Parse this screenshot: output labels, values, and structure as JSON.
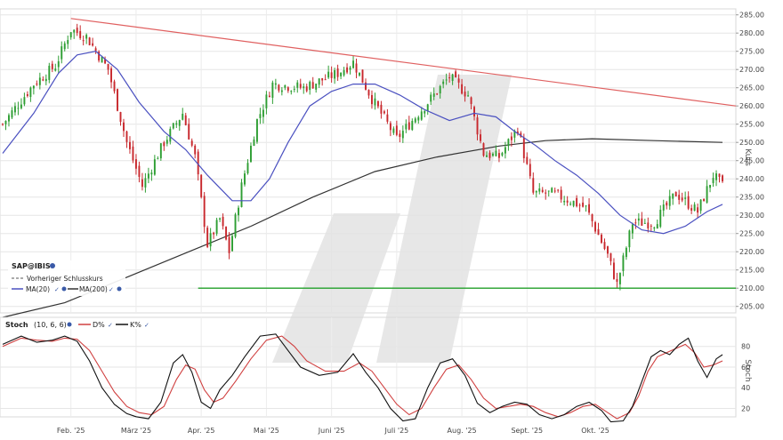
{
  "chart_data": [
    {
      "type": "candlestick",
      "legend": {
        "title": "SAP@IBIS",
        "items": [
          {
            "label": "Vorheriger Schlusskurs",
            "color": "#555555",
            "style": "dashed"
          },
          {
            "label": "MA(20)",
            "color": "#4a50c0"
          },
          {
            "label": "MA(200)",
            "color": "#333333"
          }
        ]
      },
      "ylabel": "Kurs",
      "ylim": [
        200,
        287
      ],
      "yticks": [
        "205.00",
        "210.00",
        "215.00",
        "220.00",
        "225.00",
        "230.00",
        "235.00",
        "240.00",
        "245.00",
        "250.00",
        "255.00",
        "260.00",
        "265.00",
        "270.00",
        "275.00",
        "280.00",
        "285.00"
      ],
      "xticks": [
        "Feb. '25",
        "März '25",
        "Apr. '25",
        "Mai '25",
        "Juni '25",
        "Juli '25",
        "Aug. '25",
        "Sept. '25",
        "Okt. '25"
      ],
      "colors": {
        "up": "#2e9e33",
        "down": "#c8282d",
        "ma20": "#4a50c0",
        "ma200": "#333333",
        "trendline": "#e06060",
        "support": "#22a02a"
      },
      "ohlc_keypoints": [
        {
          "x": 0,
          "close": 255
        },
        {
          "x": 10,
          "close": 266
        },
        {
          "x": 17,
          "close": 271
        },
        {
          "x": 22,
          "close": 281
        },
        {
          "x": 27,
          "close": 279
        },
        {
          "x": 34,
          "close": 270
        },
        {
          "x": 40,
          "close": 250
        },
        {
          "x": 45,
          "close": 238
        },
        {
          "x": 52,
          "close": 250
        },
        {
          "x": 58,
          "close": 258
        },
        {
          "x": 62,
          "close": 246
        },
        {
          "x": 66,
          "close": 222
        },
        {
          "x": 70,
          "close": 229
        },
        {
          "x": 73,
          "close": 220
        },
        {
          "x": 77,
          "close": 238
        },
        {
          "x": 82,
          "close": 256
        },
        {
          "x": 87,
          "close": 266
        },
        {
          "x": 97,
          "close": 265
        },
        {
          "x": 108,
          "close": 269
        },
        {
          "x": 113,
          "close": 272
        },
        {
          "x": 119,
          "close": 262
        },
        {
          "x": 127,
          "close": 251
        },
        {
          "x": 133,
          "close": 257
        },
        {
          "x": 140,
          "close": 264
        },
        {
          "x": 144,
          "close": 268
        },
        {
          "x": 150,
          "close": 263
        },
        {
          "x": 155,
          "close": 247
        },
        {
          "x": 160,
          "close": 246
        },
        {
          "x": 166,
          "close": 254
        },
        {
          "x": 171,
          "close": 236
        },
        {
          "x": 177,
          "close": 236
        },
        {
          "x": 183,
          "close": 234
        },
        {
          "x": 188,
          "close": 232
        },
        {
          "x": 195,
          "close": 219
        },
        {
          "x": 198,
          "close": 211
        },
        {
          "x": 203,
          "close": 228
        },
        {
          "x": 210,
          "close": 228
        },
        {
          "x": 217,
          "close": 236
        },
        {
          "x": 224,
          "close": 231
        },
        {
          "x": 229,
          "close": 241
        },
        {
          "x": 232,
          "close": 238
        }
      ],
      "ma20": [
        {
          "x": 0,
          "y": 247
        },
        {
          "x": 10,
          "y": 258
        },
        {
          "x": 18,
          "y": 269
        },
        {
          "x": 24,
          "y": 274
        },
        {
          "x": 30,
          "y": 275
        },
        {
          "x": 37,
          "y": 270
        },
        {
          "x": 44,
          "y": 261
        },
        {
          "x": 52,
          "y": 253
        },
        {
          "x": 59,
          "y": 248
        },
        {
          "x": 66,
          "y": 241
        },
        {
          "x": 74,
          "y": 234
        },
        {
          "x": 80,
          "y": 234
        },
        {
          "x": 86,
          "y": 240
        },
        {
          "x": 92,
          "y": 250
        },
        {
          "x": 99,
          "y": 260
        },
        {
          "x": 106,
          "y": 264
        },
        {
          "x": 113,
          "y": 266
        },
        {
          "x": 120,
          "y": 266
        },
        {
          "x": 128,
          "y": 263
        },
        {
          "x": 136,
          "y": 259
        },
        {
          "x": 144,
          "y": 256
        },
        {
          "x": 152,
          "y": 258
        },
        {
          "x": 159,
          "y": 257
        },
        {
          "x": 165,
          "y": 253
        },
        {
          "x": 172,
          "y": 249
        },
        {
          "x": 178,
          "y": 245
        },
        {
          "x": 185,
          "y": 241
        },
        {
          "x": 192,
          "y": 236
        },
        {
          "x": 199,
          "y": 230
        },
        {
          "x": 206,
          "y": 226
        },
        {
          "x": 213,
          "y": 225
        },
        {
          "x": 220,
          "y": 227
        },
        {
          "x": 227,
          "y": 231
        },
        {
          "x": 232,
          "y": 233
        }
      ],
      "ma200": [
        {
          "x": 0,
          "y": 202
        },
        {
          "x": 20,
          "y": 206
        },
        {
          "x": 40,
          "y": 213
        },
        {
          "x": 60,
          "y": 220
        },
        {
          "x": 80,
          "y": 227
        },
        {
          "x": 100,
          "y": 235
        },
        {
          "x": 120,
          "y": 242
        },
        {
          "x": 140,
          "y": 246
        },
        {
          "x": 160,
          "y": 249
        },
        {
          "x": 175,
          "y": 250.5
        },
        {
          "x": 190,
          "y": 251
        },
        {
          "x": 210,
          "y": 250.5
        },
        {
          "x": 232,
          "y": 250
        }
      ],
      "trendline": [
        {
          "x": 22,
          "y": 284
        },
        {
          "x": 240,
          "y": 260
        }
      ],
      "support": [
        {
          "x": 63,
          "y": 210
        },
        {
          "x": 240,
          "y": 210
        }
      ]
    },
    {
      "type": "line",
      "title": "Stoch",
      "params": "(10, 6, 6)",
      "legend": [
        {
          "label": "D%",
          "color": "#d04040"
        },
        {
          "label": "K%",
          "color": "#111111"
        }
      ],
      "ylabel": "Stoch",
      "ylim": [
        0,
        100
      ],
      "yticks": [
        "20",
        "40",
        "60",
        "80"
      ],
      "series": [
        {
          "name": "K%",
          "color": "#111111",
          "points": [
            [
              0,
              82
            ],
            [
              6,
              90
            ],
            [
              11,
              84
            ],
            [
              16,
              86
            ],
            [
              20,
              90
            ],
            [
              24,
              85
            ],
            [
              28,
              66
            ],
            [
              32,
              40
            ],
            [
              36,
              24
            ],
            [
              40,
              15
            ],
            [
              43,
              12
            ],
            [
              47,
              10
            ],
            [
              51,
              26
            ],
            [
              55,
              64
            ],
            [
              58,
              72
            ],
            [
              61,
              55
            ],
            [
              64,
              26
            ],
            [
              67,
              20
            ],
            [
              70,
              38
            ],
            [
              74,
              52
            ],
            [
              78,
              70
            ],
            [
              83,
              90
            ],
            [
              88,
              92
            ],
            [
              92,
              76
            ],
            [
              96,
              60
            ],
            [
              102,
              52
            ],
            [
              108,
              55
            ],
            [
              113,
              73
            ],
            [
              117,
              55
            ],
            [
              121,
              40
            ],
            [
              125,
              20
            ],
            [
              129,
              8
            ],
            [
              133,
              10
            ],
            [
              137,
              40
            ],
            [
              141,
              64
            ],
            [
              145,
              68
            ],
            [
              149,
              52
            ],
            [
              153,
              25
            ],
            [
              157,
              16
            ],
            [
              161,
              22
            ],
            [
              165,
              26
            ],
            [
              169,
              24
            ],
            [
              173,
              14
            ],
            [
              177,
              10
            ],
            [
              181,
              14
            ],
            [
              185,
              22
            ],
            [
              189,
              26
            ],
            [
              193,
              18
            ],
            [
              196,
              7
            ],
            [
              200,
              8
            ],
            [
              203,
              22
            ],
            [
              206,
              46
            ],
            [
              209,
              70
            ],
            [
              212,
              76
            ],
            [
              215,
              72
            ],
            [
              218,
              82
            ],
            [
              221,
              88
            ],
            [
              224,
              66
            ],
            [
              227,
              50
            ],
            [
              230,
              68
            ],
            [
              232,
              72
            ]
          ]
        },
        {
          "name": "D%",
          "color": "#d04040",
          "points": [
            [
              0,
              80
            ],
            [
              6,
              88
            ],
            [
              11,
              86
            ],
            [
              16,
              85
            ],
            [
              20,
              88
            ],
            [
              24,
              87
            ],
            [
              28,
              76
            ],
            [
              32,
              56
            ],
            [
              36,
              36
            ],
            [
              40,
              22
            ],
            [
              44,
              16
            ],
            [
              48,
              14
            ],
            [
              52,
              22
            ],
            [
              56,
              48
            ],
            [
              59,
              62
            ],
            [
              62,
              58
            ],
            [
              65,
              38
            ],
            [
              68,
              26
            ],
            [
              71,
              30
            ],
            [
              75,
              46
            ],
            [
              80,
              68
            ],
            [
              85,
              86
            ],
            [
              90,
              90
            ],
            [
              94,
              80
            ],
            [
              98,
              66
            ],
            [
              104,
              56
            ],
            [
              110,
              56
            ],
            [
              115,
              64
            ],
            [
              119,
              56
            ],
            [
              123,
              40
            ],
            [
              127,
              24
            ],
            [
              131,
              14
            ],
            [
              135,
              20
            ],
            [
              139,
              40
            ],
            [
              143,
              58
            ],
            [
              147,
              62
            ],
            [
              151,
              48
            ],
            [
              155,
              30
            ],
            [
              159,
              20
            ],
            [
              163,
              22
            ],
            [
              167,
              24
            ],
            [
              171,
              22
            ],
            [
              175,
              16
            ],
            [
              179,
              12
            ],
            [
              183,
              16
            ],
            [
              187,
              22
            ],
            [
              191,
              24
            ],
            [
              195,
              16
            ],
            [
              198,
              10
            ],
            [
              202,
              16
            ],
            [
              205,
              32
            ],
            [
              208,
              56
            ],
            [
              211,
              70
            ],
            [
              214,
              74
            ],
            [
              217,
              78
            ],
            [
              220,
              82
            ],
            [
              223,
              74
            ],
            [
              226,
              60
            ],
            [
              229,
              62
            ],
            [
              232,
              66
            ]
          ]
        }
      ]
    }
  ]
}
